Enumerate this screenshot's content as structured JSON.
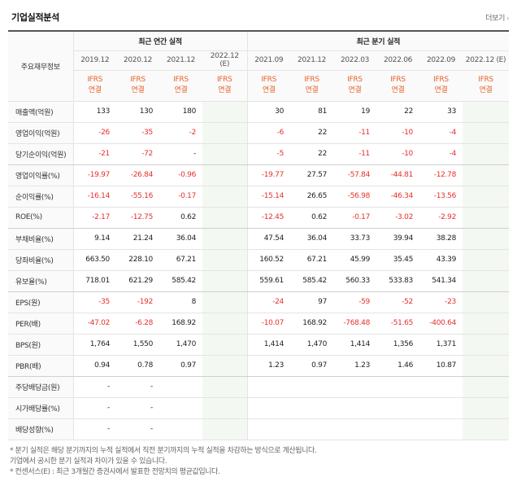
{
  "header": {
    "title": "기업실적분석",
    "more_label": "더보기"
  },
  "table": {
    "corner_label": "주요재무정보",
    "annual_group_label": "최근 연간 실적",
    "quarter_group_label": "최근 분기 실적",
    "annual_periods": [
      "2019.12",
      "2020.12",
      "2021.12",
      "2022.12"
    ],
    "annual_estimate_mark": "(E)",
    "quarter_periods": [
      "2021.09",
      "2021.12",
      "2022.03",
      "2022.06",
      "2022.09",
      "2022.12 (E)"
    ],
    "ifrs_top": "IFRS",
    "ifrs_bottom": "연결",
    "rows": [
      {
        "label": "매출액(억원)",
        "annual": [
          "133",
          "130",
          "180",
          ""
        ],
        "quarter": [
          "30",
          "81",
          "19",
          "22",
          "33",
          ""
        ]
      },
      {
        "label": "영업이익(억원)",
        "annual": [
          "-26",
          "-35",
          "-2",
          ""
        ],
        "quarter": [
          "-6",
          "22",
          "-11",
          "-10",
          "-4",
          ""
        ]
      },
      {
        "label": "당기순이익(억원)",
        "annual": [
          "-21",
          "-72",
          "-",
          ""
        ],
        "quarter": [
          "-5",
          "22",
          "-11",
          "-10",
          "-4",
          ""
        ]
      },
      {
        "label": "영업이익률(%)",
        "annual": [
          "-19.97",
          "-26.84",
          "-0.96",
          ""
        ],
        "quarter": [
          "-19.77",
          "27.57",
          "-57.84",
          "-44.81",
          "-12.78",
          ""
        ]
      },
      {
        "label": "순이익률(%)",
        "annual": [
          "-16.14",
          "-55.16",
          "-0.17",
          ""
        ],
        "quarter": [
          "-15.14",
          "26.65",
          "-56.98",
          "-46.34",
          "-13.56",
          ""
        ]
      },
      {
        "label": "ROE(%)",
        "annual": [
          "-2.17",
          "-12.75",
          "0.62",
          ""
        ],
        "quarter": [
          "-12.45",
          "0.62",
          "-0.17",
          "-3.02",
          "-2.92",
          ""
        ]
      },
      {
        "label": "부채비율(%)",
        "annual": [
          "9.14",
          "21.24",
          "36.04",
          ""
        ],
        "quarter": [
          "47.54",
          "36.04",
          "33.73",
          "39.94",
          "38.28",
          ""
        ]
      },
      {
        "label": "당좌비율(%)",
        "annual": [
          "663.50",
          "228.10",
          "67.21",
          ""
        ],
        "quarter": [
          "160.52",
          "67.21",
          "45.99",
          "35.45",
          "43.39",
          ""
        ]
      },
      {
        "label": "유보율(%)",
        "annual": [
          "718.01",
          "621.29",
          "585.42",
          ""
        ],
        "quarter": [
          "559.61",
          "585.42",
          "560.33",
          "533.83",
          "541.34",
          ""
        ]
      },
      {
        "label": "EPS(원)",
        "annual": [
          "-35",
          "-192",
          "8",
          ""
        ],
        "quarter": [
          "-24",
          "97",
          "-59",
          "-52",
          "-23",
          ""
        ]
      },
      {
        "label": "PER(배)",
        "annual": [
          "-47.02",
          "-6.28",
          "168.92",
          ""
        ],
        "quarter": [
          "-10.07",
          "168.92",
          "-768.48",
          "-51.65",
          "-400.64",
          ""
        ]
      },
      {
        "label": "BPS(원)",
        "annual": [
          "1,764",
          "1,550",
          "1,470",
          ""
        ],
        "quarter": [
          "1,414",
          "1,470",
          "1,414",
          "1,356",
          "1,371",
          ""
        ]
      },
      {
        "label": "PBR(배)",
        "annual": [
          "0.94",
          "0.78",
          "0.97",
          ""
        ],
        "quarter": [
          "1.23",
          "0.97",
          "1.23",
          "1.46",
          "10.87",
          ""
        ]
      },
      {
        "label": "주당배당금(원)",
        "annual": [
          "-",
          "-",
          "",
          ""
        ],
        "quarter": [
          "",
          "",
          "",
          "",
          "",
          ""
        ]
      },
      {
        "label": "시가배당률(%)",
        "annual": [
          "-",
          "-",
          "",
          ""
        ],
        "quarter": [
          "",
          "",
          "",
          "",
          "",
          ""
        ]
      },
      {
        "label": "배당성향(%)",
        "annual": [
          "-",
          "-",
          "",
          ""
        ],
        "quarter": [
          "",
          "",
          "",
          "",
          "",
          ""
        ]
      }
    ]
  },
  "notes": [
    "* 분기 실적은 해당 분기까지의 누적 실적에서 직전 분기까지의 누적 실적을 차감하는 방식으로 계산됩니다.",
    "  기업에서 공시한 분기 실적과 차이가 있을 수 있습니다.",
    "* 컨센서스(E) : 최근 3개월간 증권사에서 발표한 전망치의 평균값입니다."
  ],
  "colors": {
    "negative": "#e5302a",
    "ifrs": "#e8622a",
    "estimate_bg": "#f4f8f2"
  }
}
